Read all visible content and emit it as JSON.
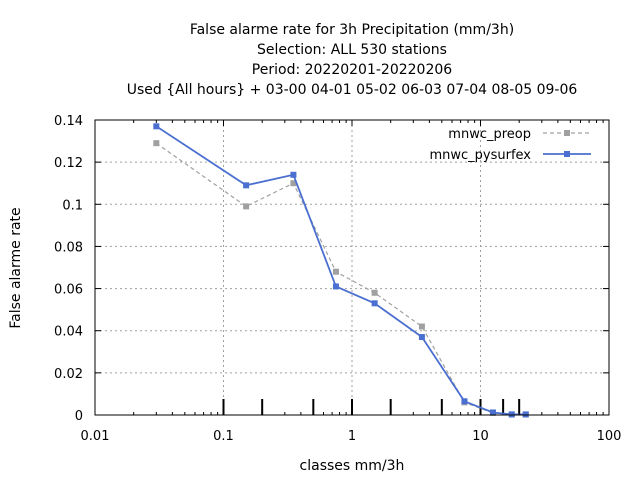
{
  "chart_data": {
    "type": "line",
    "title_lines": [
      "False alarme rate  for 3h Precipitation (mm/3h)",
      "Selection: ALL    530 stations",
      "Period: 20220201-20220206",
      "Used {All hours} + 03-00 04-01 05-02 06-03 07-04 08-05 09-06"
    ],
    "xlabel": "classes mm/3h",
    "ylabel": "False alarme rate",
    "x_scale": "log",
    "xlim": [
      0.01,
      100
    ],
    "ylim": [
      0,
      0.14
    ],
    "x_ticks": [
      {
        "value": 0.01,
        "label": "0.01"
      },
      {
        "value": 0.1,
        "label": "0.1"
      },
      {
        "value": 1,
        "label": "1"
      },
      {
        "value": 10,
        "label": "10"
      },
      {
        "value": 100,
        "label": "100"
      }
    ],
    "y_ticks": [
      {
        "value": 0,
        "label": "0"
      },
      {
        "value": 0.02,
        "label": "0.02"
      },
      {
        "value": 0.04,
        "label": "0.04"
      },
      {
        "value": 0.06,
        "label": "0.06"
      },
      {
        "value": 0.08,
        "label": "0.08"
      },
      {
        "value": 0.1,
        "label": "0.1"
      },
      {
        "value": 0.12,
        "label": "0.12"
      },
      {
        "value": 0.14,
        "label": "0.14"
      }
    ],
    "class_marks": [
      0.1,
      0.2,
      0.5,
      1,
      2,
      5,
      10,
      15,
      20
    ],
    "grid": true,
    "legend_position": "top-right",
    "series": [
      {
        "name": "mnwc_preop",
        "color": "#a0a0a0",
        "dashed": true,
        "x": [
          0.03,
          0.15,
          0.35,
          0.75,
          1.5,
          3.5,
          7.5,
          12.5,
          17.5,
          22.5
        ],
        "y": [
          0.129,
          0.099,
          0.11,
          0.068,
          0.058,
          0.042,
          0.006,
          0.001,
          0.0002,
          0.0002
        ]
      },
      {
        "name": "mnwc_pysurfex",
        "color": "#4a6fd0",
        "dashed": false,
        "x": [
          0.03,
          0.15,
          0.35,
          0.75,
          1.5,
          3.5,
          7.5,
          12.5,
          17.5,
          22.5
        ],
        "y": [
          0.137,
          0.109,
          0.114,
          0.061,
          0.053,
          0.037,
          0.0065,
          0.0012,
          0.0003,
          0.0003
        ]
      }
    ]
  }
}
